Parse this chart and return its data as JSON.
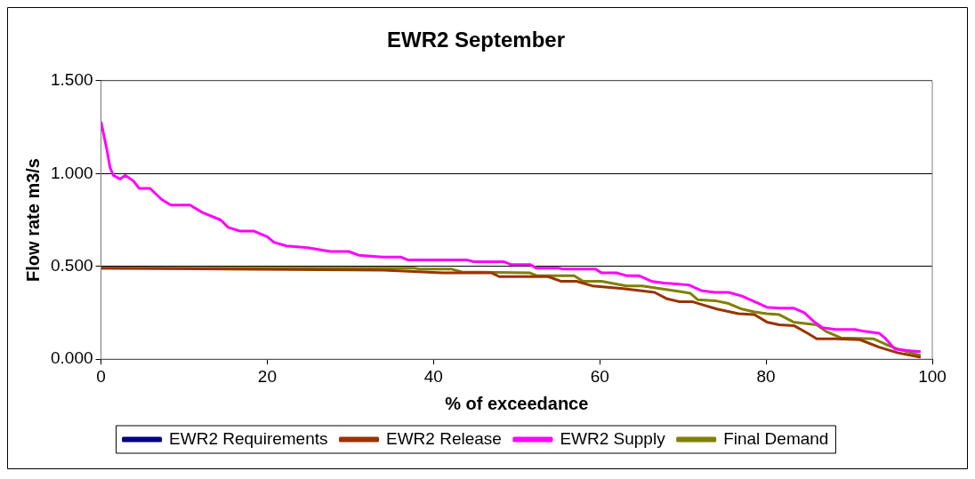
{
  "chart_data": {
    "type": "line",
    "title": "EWR2 September",
    "xlabel": "% of exceedance",
    "ylabel": "Flow rate m3/s",
    "xlim": [
      0,
      100
    ],
    "xticks": [
      0,
      20,
      40,
      60,
      80,
      100
    ],
    "ylim": [
      0,
      1.5
    ],
    "yticks": [
      {
        "value": 0,
        "label": "0.000"
      },
      {
        "value": 0.5,
        "label": "0.500"
      },
      {
        "value": 1,
        "label": "1.000"
      },
      {
        "value": 1.5,
        "label": "1.500"
      }
    ],
    "grid": "y",
    "legend": "bottom",
    "marker": "none",
    "line_style": "solid",
    "series": [
      {
        "name": "EWR2 Requirements",
        "color": "#000080"
      },
      {
        "name": "EWR2 Release",
        "color": "#993300",
        "x": [
          0,
          34,
          41.1,
          47,
          47.9,
          53.8,
          55.3,
          57.2,
          59.1,
          62.8,
          66.6,
          68.1,
          69.6,
          71.1,
          72.6,
          74.1,
          76.7,
          78.6,
          80.1,
          81.6,
          83.4,
          85,
          86.1,
          88.4,
          91.3,
          93.6,
          95.8,
          98.6
        ],
        "values": [
          0.49,
          0.48,
          0.465,
          0.465,
          0.445,
          0.445,
          0.42,
          0.42,
          0.395,
          0.38,
          0.36,
          0.325,
          0.31,
          0.31,
          0.29,
          0.27,
          0.245,
          0.24,
          0.2,
          0.185,
          0.18,
          0.14,
          0.11,
          0.11,
          0.105,
          0.065,
          0.035,
          0.01
        ]
      },
      {
        "name": "EWR2 Supply",
        "color": "#ff00ff",
        "x": [
          0,
          0.7,
          1.1,
          1.5,
          2.3,
          2.9,
          3.9,
          4.6,
          5.9,
          7.3,
          8.4,
          10.7,
          12.2,
          14.4,
          15.3,
          16.7,
          18.4,
          20,
          20.8,
          22.3,
          24.9,
          27.6,
          29.8,
          31,
          33.9,
          36.1,
          36.9,
          44,
          44.8,
          48.5,
          49.3,
          51.6,
          52.4,
          55,
          55.7,
          59.5,
          60.2,
          62,
          63.2,
          64.7,
          66.2,
          67.7,
          70.7,
          72.2,
          73.8,
          75.5,
          77.1,
          78.6,
          80.1,
          81.6,
          83.3,
          84.6,
          85.7,
          86.8,
          88.4,
          90.7,
          91.8,
          93.6,
          94.4,
          95.5,
          97.4,
          98.6
        ],
        "values": [
          1.28,
          1.13,
          1.03,
          0.99,
          0.97,
          0.99,
          0.96,
          0.92,
          0.92,
          0.86,
          0.83,
          0.83,
          0.79,
          0.75,
          0.71,
          0.69,
          0.69,
          0.66,
          0.63,
          0.61,
          0.6,
          0.58,
          0.58,
          0.56,
          0.55,
          0.55,
          0.535,
          0.535,
          0.525,
          0.525,
          0.51,
          0.51,
          0.49,
          0.49,
          0.485,
          0.485,
          0.465,
          0.465,
          0.45,
          0.45,
          0.42,
          0.41,
          0.4,
          0.37,
          0.36,
          0.36,
          0.34,
          0.31,
          0.28,
          0.275,
          0.275,
          0.25,
          0.205,
          0.17,
          0.16,
          0.16,
          0.15,
          0.14,
          0.11,
          0.055,
          0.045,
          0.04
        ]
      },
      {
        "name": "Final Demand",
        "color": "#808000",
        "x": [
          0,
          37.7,
          38.4,
          42.2,
          43.4,
          51.6,
          52.4,
          56.9,
          58,
          60.2,
          63.2,
          65.1,
          69.6,
          70.9,
          71.8,
          73.9,
          75.5,
          77.1,
          78.6,
          80.1,
          81.6,
          83.3,
          86.1,
          87.2,
          89,
          92.9,
          94.4,
          95.8,
          98.6
        ],
        "values": [
          0.49,
          0.49,
          0.485,
          0.485,
          0.47,
          0.465,
          0.45,
          0.45,
          0.42,
          0.42,
          0.395,
          0.395,
          0.365,
          0.355,
          0.32,
          0.315,
          0.3,
          0.27,
          0.255,
          0.245,
          0.24,
          0.2,
          0.185,
          0.15,
          0.115,
          0.11,
          0.08,
          0.055,
          0.02
        ]
      }
    ]
  }
}
